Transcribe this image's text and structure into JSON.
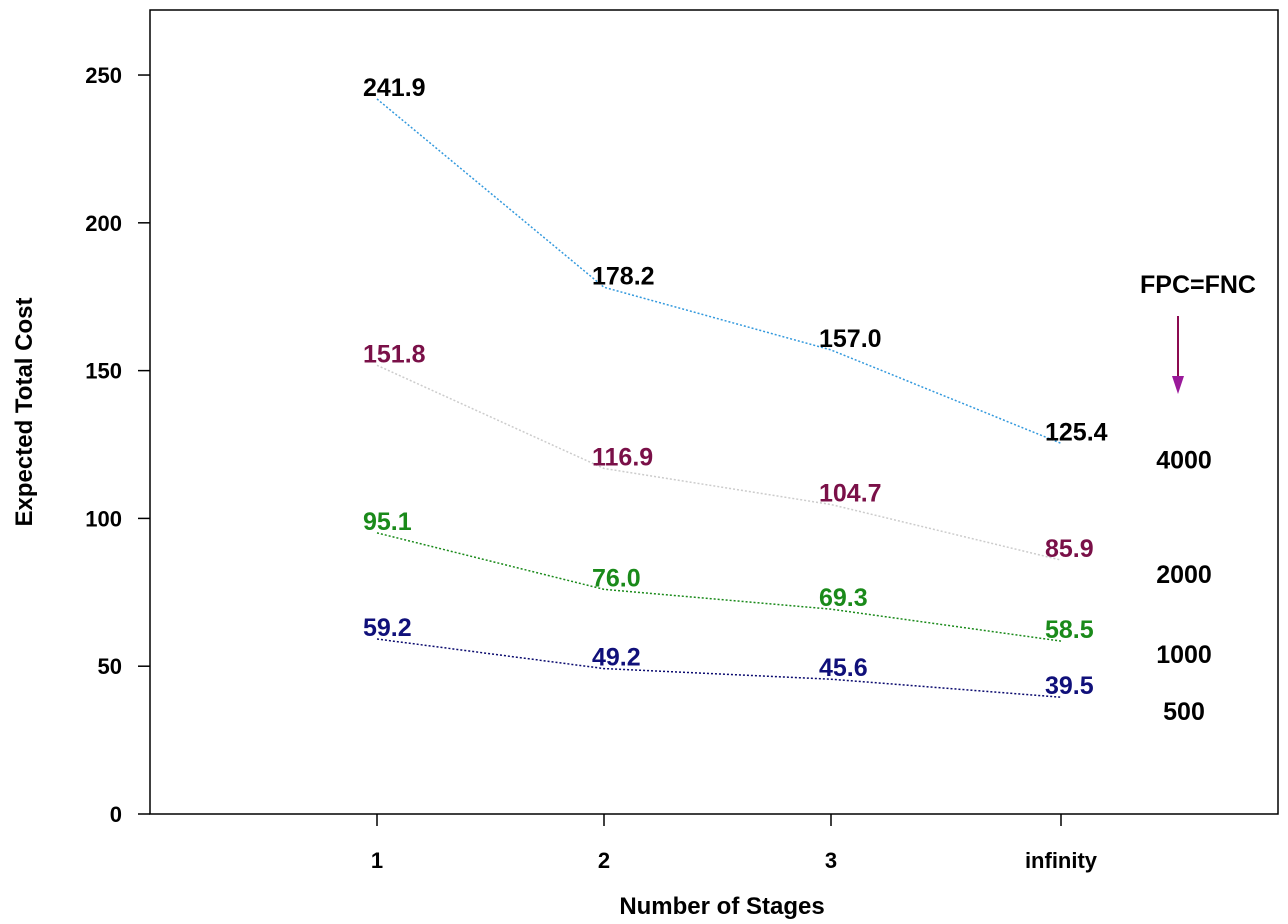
{
  "chart_data": {
    "type": "line",
    "title": "",
    "xlabel": "Number of Stages",
    "ylabel": "Expected Total Cost",
    "categories": [
      "1",
      "2",
      "3",
      "infinity"
    ],
    "yticks": [
      "0",
      "50",
      "100",
      "150",
      "200",
      "250"
    ],
    "ylim": [
      0,
      272
    ],
    "grid": false,
    "legend_title": "FPC=FNC",
    "series": [
      {
        "name": "4000",
        "values": [
          241.9,
          178.2,
          157.0,
          125.4
        ],
        "labels": [
          "241.9",
          "178.2",
          "157.0",
          "125.4"
        ],
        "line_color": "#3399dd",
        "label_color": "#000000"
      },
      {
        "name": "2000",
        "values": [
          151.8,
          116.9,
          104.7,
          85.9
        ],
        "labels": [
          "151.8",
          "116.9",
          "104.7",
          "85.9"
        ],
        "line_color": "#cccccc",
        "label_color": "#7a1048"
      },
      {
        "name": "1000",
        "values": [
          95.1,
          76.0,
          69.3,
          58.5
        ],
        "labels": [
          "95.1",
          "76.0",
          "69.3",
          "58.5"
        ],
        "line_color": "#1a8a1a",
        "label_color": "#1a8a1a"
      },
      {
        "name": "500",
        "values": [
          59.2,
          49.2,
          45.6,
          39.5
        ],
        "labels": [
          "59.2",
          "49.2",
          "45.6",
          "39.5"
        ],
        "line_color": "#0a0a6e",
        "label_color": "#10107a"
      }
    ],
    "arrow_color": "#8b0a50",
    "arrow_head_color": "#9a1a9a"
  }
}
